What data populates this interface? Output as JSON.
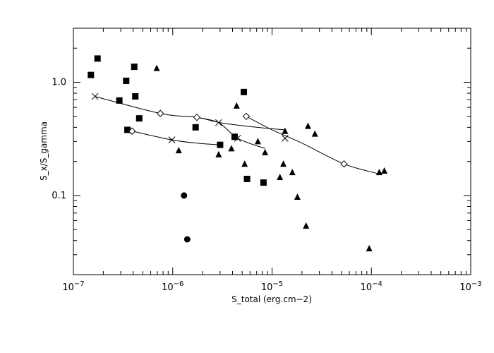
{
  "chart_data": {
    "type": "scatter",
    "title": "",
    "xlabel": "S_total (erg.cm−2)",
    "ylabel": "S_x/S_gamma",
    "xscale": "log",
    "yscale": "log",
    "xlim": [
      1e-07,
      0.001
    ],
    "ylim": [
      0.02,
      3.0
    ],
    "grid": false,
    "legend": "none",
    "color": "#000000",
    "x_ticks": [
      {
        "value": 1e-07,
        "base": "10",
        "exp": "−7"
      },
      {
        "value": 1e-06,
        "base": "10",
        "exp": "−6"
      },
      {
        "value": 1e-05,
        "base": "10",
        "exp": "−5"
      },
      {
        "value": 0.0001,
        "base": "10",
        "exp": "−4"
      },
      {
        "value": 0.001,
        "base": "10",
        "exp": "−3"
      }
    ],
    "y_ticks": [
      {
        "value": 0.1,
        "label": "0.1"
      },
      {
        "value": 1.0,
        "label": "1.0"
      }
    ],
    "series": [
      {
        "marker": "square",
        "points": [
          [
            1.5e-07,
            1.16
          ],
          [
            1.75e-07,
            1.62
          ],
          [
            2.9e-07,
            0.69
          ],
          [
            3.4e-07,
            1.03
          ],
          [
            3.5e-07,
            0.38
          ],
          [
            4.1e-07,
            1.37
          ],
          [
            4.2e-07,
            0.75
          ],
          [
            4.6e-07,
            0.48
          ],
          [
            1.7e-06,
            0.4
          ],
          [
            3e-06,
            0.28
          ],
          [
            4.2e-06,
            0.33
          ],
          [
            5.2e-06,
            0.82
          ],
          [
            5.6e-06,
            0.14
          ],
          [
            8.2e-06,
            0.13
          ]
        ]
      },
      {
        "marker": "triangle",
        "points": [
          [
            6.9e-07,
            1.33
          ],
          [
            1.15e-06,
            0.25
          ],
          [
            2.9e-06,
            0.23
          ],
          [
            3.9e-06,
            0.26
          ],
          [
            4.4e-06,
            0.62
          ],
          [
            5.3e-06,
            0.19
          ],
          [
            7.2e-06,
            0.3
          ],
          [
            8.5e-06,
            0.24
          ],
          [
            1.2e-05,
            0.145
          ],
          [
            1.3e-05,
            0.19
          ],
          [
            1.35e-05,
            0.37
          ],
          [
            1.6e-05,
            0.16
          ],
          [
            1.8e-05,
            0.097
          ],
          [
            2.2e-05,
            0.054
          ],
          [
            2.3e-05,
            0.41
          ],
          [
            2.7e-05,
            0.35
          ],
          [
            9.5e-05,
            0.034
          ],
          [
            0.00012,
            0.16
          ],
          [
            0.000135,
            0.165
          ]
        ]
      },
      {
        "marker": "circle",
        "points": [
          [
            1.3e-06,
            0.1
          ],
          [
            1.4e-06,
            0.041
          ]
        ]
      },
      {
        "marker": "diamond",
        "points": [
          [
            3.9e-07,
            0.37
          ],
          [
            7.5e-07,
            0.53
          ],
          [
            1.75e-06,
            0.49
          ],
          [
            5.5e-06,
            0.5
          ],
          [
            5.3e-05,
            0.19
          ]
        ]
      },
      {
        "marker": "x",
        "points": [
          [
            1.65e-07,
            0.75
          ],
          [
            9.8e-07,
            0.31
          ],
          [
            2.9e-06,
            0.44
          ],
          [
            4.5e-06,
            0.32
          ],
          [
            1.35e-05,
            0.32
          ]
        ]
      }
    ],
    "curves": [
      {
        "points": [
          [
            1.65e-07,
            0.75
          ],
          [
            7.5e-07,
            0.53
          ],
          [
            1.75e-06,
            0.49
          ],
          [
            3e-06,
            0.44
          ],
          [
            7e-06,
            0.4
          ],
          [
            1.35e-05,
            0.38
          ]
        ]
      },
      {
        "points": [
          [
            3.9e-07,
            0.37
          ],
          [
            9.8e-07,
            0.31
          ],
          [
            1.75e-06,
            0.29
          ],
          [
            3e-06,
            0.28
          ]
        ]
      },
      {
        "points": [
          [
            1.75e-06,
            0.49
          ],
          [
            2.9e-06,
            0.44
          ],
          [
            4.5e-06,
            0.32
          ],
          [
            8.5e-06,
            0.26
          ]
        ]
      },
      {
        "points": [
          [
            5.5e-06,
            0.5
          ],
          [
            1e-05,
            0.38
          ],
          [
            2e-05,
            0.29
          ],
          [
            5.3e-05,
            0.19
          ],
          [
            0.00012,
            0.155
          ]
        ]
      }
    ]
  }
}
